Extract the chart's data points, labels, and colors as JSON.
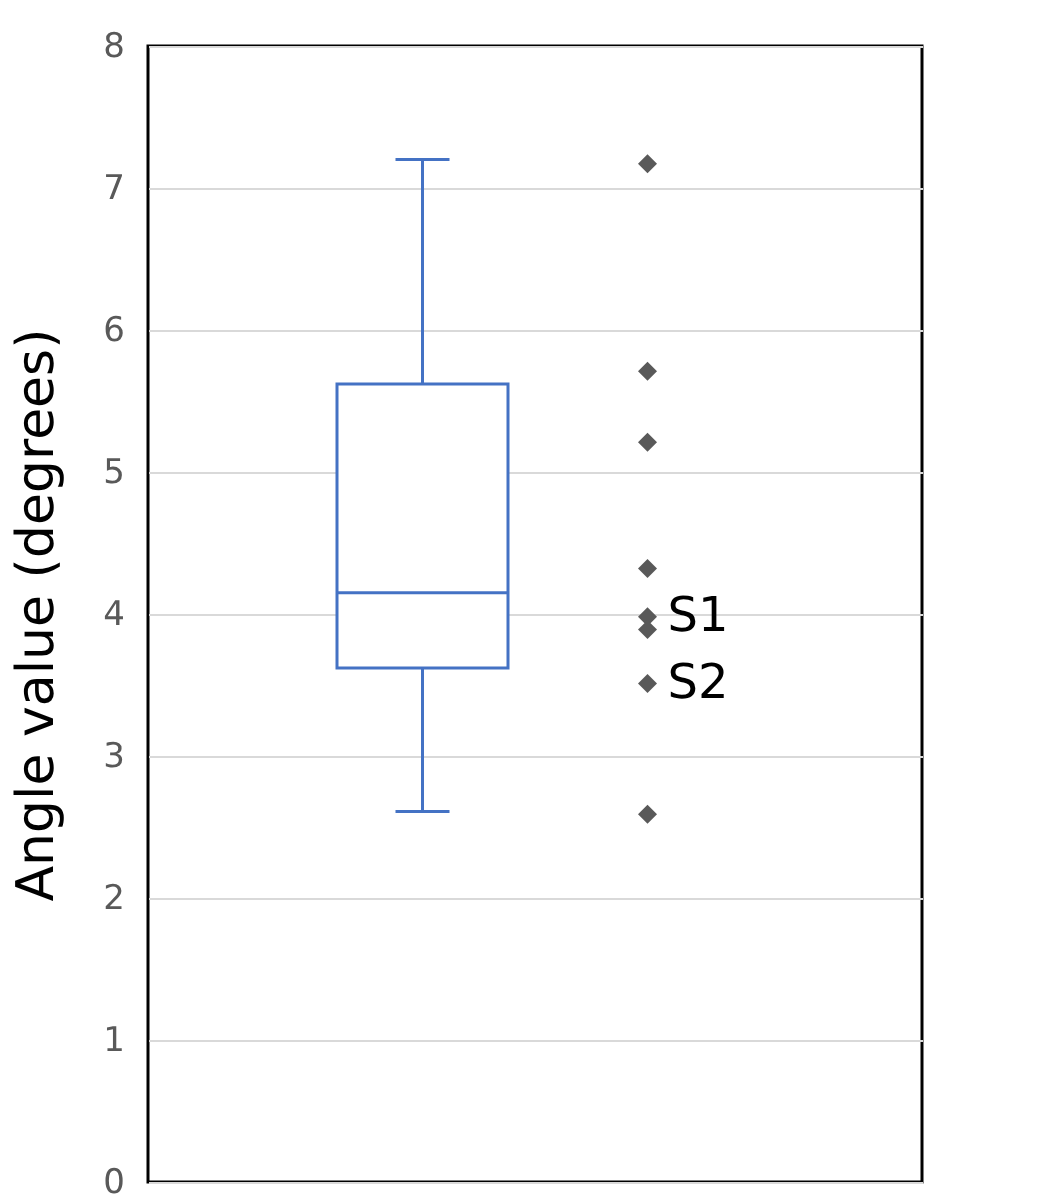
{
  "chart_data": {
    "type": "box",
    "ylabel": "Angle value (degrees)",
    "categories": [
      null,
      null
    ],
    "ylim": [
      0,
      8
    ],
    "yticks": [
      0,
      1,
      2,
      3,
      4,
      5,
      6,
      7,
      8
    ],
    "grid": "y",
    "tick_labels": "y",
    "series": [
      {
        "color": "#4472c4",
        "boxes": [
          {
            "low": 2.61,
            "q1": 3.62,
            "median": 4.15,
            "q3": 5.62,
            "high": 7.2
          },
          null
        ]
      },
      {
        "type": "scatter",
        "color": "#595959",
        "marker": "diamond",
        "values": [
          null,
          7.17
        ]
      },
      {
        "type": "scatter",
        "color": "#595959",
        "marker": "diamond",
        "values": [
          null,
          5.71
        ]
      },
      {
        "type": "scatter",
        "color": "#595959",
        "marker": "diamond",
        "values": [
          null,
          5.21
        ]
      },
      {
        "type": "scatter",
        "color": "#595959",
        "marker": "diamond",
        "values": [
          null,
          4.32
        ]
      },
      {
        "type": "scatter",
        "color": "#595959",
        "marker": "diamond",
        "values": [
          null,
          3.98
        ],
        "value_labels": [
          null,
          "S1"
        ]
      },
      {
        "type": "scatter",
        "color": "#595959",
        "marker": "diamond",
        "values": [
          null,
          3.89
        ]
      },
      {
        "type": "scatter",
        "color": "#595959",
        "marker": "diamond",
        "values": [
          null,
          3.51
        ],
        "value_labels": [
          null,
          "S2"
        ]
      },
      {
        "type": "scatter",
        "color": "#595959",
        "marker": "diamond",
        "values": [
          null,
          2.59
        ]
      }
    ]
  }
}
